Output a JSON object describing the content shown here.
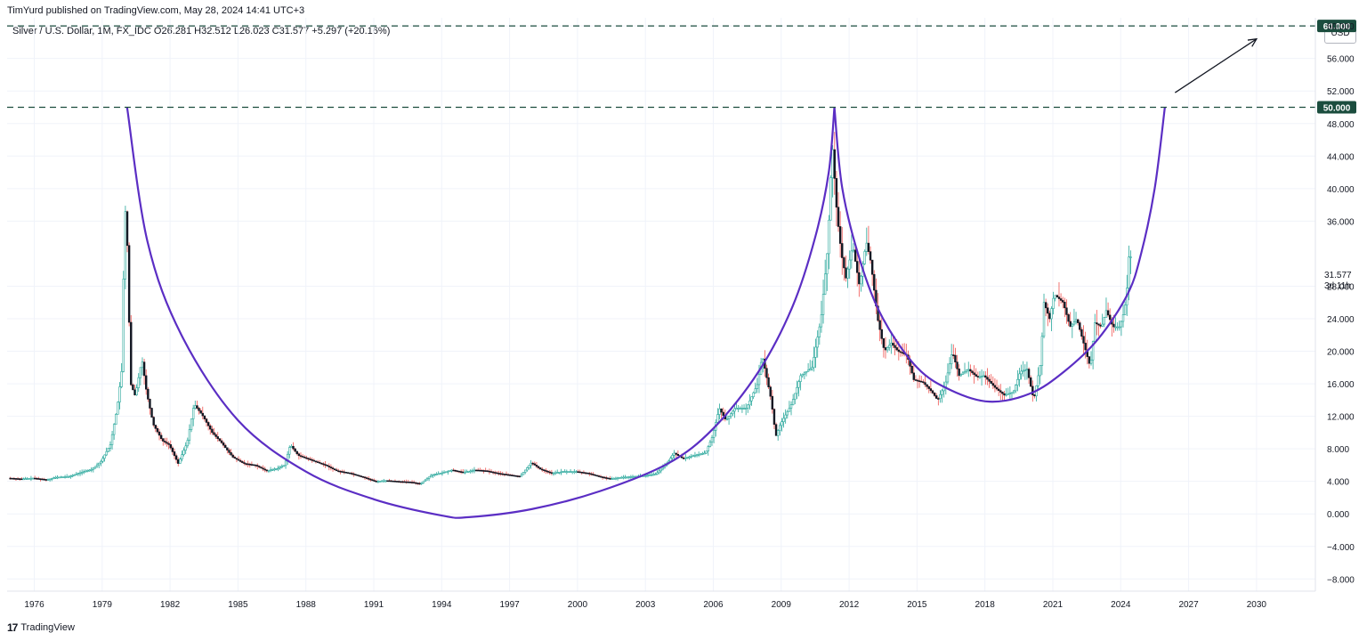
{
  "header": {
    "publisher": "TimYurd published on TradingView.com, May 28, 2024 14:41 UTC+3",
    "symbol_info": "Silver / U.S. Dollar, 1M, FX_IDC  O26.281  H32.512  L26.023  C31.577  +5.297 (+20.16%)",
    "currency": "USD"
  },
  "footer": {
    "brand": "TradingView",
    "logo_icon": "tradingview-logo-icon"
  },
  "colors": {
    "up": "#26a69a",
    "down": "#ef5350",
    "candle": "#131722",
    "cup_curve": "#5b2ec4",
    "level_line": "#1b4d3e",
    "level_badge": "#1b4d3e",
    "grid": "#f0f3fa",
    "axis_text": "#131722"
  },
  "chart_data": {
    "type": "line",
    "title": "",
    "x_label": "",
    "y_label": "",
    "x_ticks": [
      "1976",
      "1979",
      "1982",
      "1985",
      "1988",
      "1991",
      "1994",
      "1997",
      "2000",
      "2003",
      "2006",
      "2009",
      "2012",
      "2015",
      "2018",
      "2021",
      "2024",
      "2027",
      "2030"
    ],
    "y_ticks": [
      "60.000",
      "56.000",
      "52.000",
      "48.000",
      "44.000",
      "40.000",
      "36.000",
      "28.000",
      "24.000",
      "20.000",
      "16.000",
      "12.000",
      "8.000",
      "4.000",
      "0.000",
      "−4.000",
      "−8.000"
    ],
    "x_range": [
      1974.8,
      2032.6
    ],
    "y_range": [
      -9.5,
      61
    ],
    "price_label": "31.577",
    "countdown_label": "3d 11h",
    "levels": [
      {
        "value": 60,
        "label": "60.000"
      },
      {
        "value": 50,
        "label": "50.000"
      }
    ],
    "series": [
      {
        "name": "",
        "values_xy": [
          [
            1974.9,
            4.4
          ],
          [
            1975.5,
            4.3
          ],
          [
            1976.0,
            4.4
          ],
          [
            1976.6,
            4.2
          ],
          [
            1977.0,
            4.5
          ],
          [
            1977.6,
            4.6
          ],
          [
            1978.0,
            5.0
          ],
          [
            1978.6,
            5.5
          ],
          [
            1979.0,
            6.5
          ],
          [
            1979.4,
            8.5
          ],
          [
            1979.7,
            13.0
          ],
          [
            1979.9,
            17.5
          ],
          [
            1980.05,
            38.0
          ],
          [
            1980.15,
            33.0
          ],
          [
            1980.3,
            16.0
          ],
          [
            1980.5,
            14.5
          ],
          [
            1980.8,
            19.0
          ],
          [
            1981.0,
            15.0
          ],
          [
            1981.3,
            11.0
          ],
          [
            1981.7,
            9.0
          ],
          [
            1982.0,
            8.5
          ],
          [
            1982.4,
            6.2
          ],
          [
            1982.8,
            8.8
          ],
          [
            1983.1,
            13.5
          ],
          [
            1983.5,
            12.0
          ],
          [
            1983.9,
            10.0
          ],
          [
            1984.3,
            8.8
          ],
          [
            1984.8,
            7.0
          ],
          [
            1985.3,
            6.2
          ],
          [
            1985.8,
            6.0
          ],
          [
            1986.3,
            5.3
          ],
          [
            1986.8,
            5.6
          ],
          [
            1987.1,
            6.0
          ],
          [
            1987.35,
            8.5
          ],
          [
            1987.7,
            7.2
          ],
          [
            1988.3,
            6.6
          ],
          [
            1988.9,
            6.0
          ],
          [
            1989.4,
            5.3
          ],
          [
            1990.0,
            5.0
          ],
          [
            1990.6,
            4.5
          ],
          [
            1991.1,
            4.0
          ],
          [
            1991.6,
            4.1
          ],
          [
            1992.1,
            4.0
          ],
          [
            1992.7,
            3.9
          ],
          [
            1993.1,
            3.7
          ],
          [
            1993.6,
            4.8
          ],
          [
            1994.0,
            5.0
          ],
          [
            1994.5,
            5.4
          ],
          [
            1995.0,
            5.1
          ],
          [
            1995.5,
            5.4
          ],
          [
            1996.0,
            5.3
          ],
          [
            1996.5,
            5.0
          ],
          [
            1997.0,
            4.8
          ],
          [
            1997.5,
            4.6
          ],
          [
            1998.0,
            6.3
          ],
          [
            1998.4,
            5.5
          ],
          [
            1998.9,
            5.0
          ],
          [
            1999.4,
            5.2
          ],
          [
            2000.0,
            5.2
          ],
          [
            2000.5,
            5.0
          ],
          [
            2001.0,
            4.6
          ],
          [
            2001.5,
            4.3
          ],
          [
            2002.0,
            4.5
          ],
          [
            2002.5,
            4.6
          ],
          [
            2003.0,
            4.7
          ],
          [
            2003.5,
            4.9
          ],
          [
            2004.0,
            6.2
          ],
          [
            2004.3,
            7.5
          ],
          [
            2004.7,
            6.8
          ],
          [
            2005.2,
            7.2
          ],
          [
            2005.7,
            7.5
          ],
          [
            2006.0,
            9.5
          ],
          [
            2006.3,
            13.0
          ],
          [
            2006.6,
            11.5
          ],
          [
            2007.0,
            13.0
          ],
          [
            2007.5,
            13.0
          ],
          [
            2008.0,
            16.0
          ],
          [
            2008.2,
            19.5
          ],
          [
            2008.6,
            14.0
          ],
          [
            2008.8,
            9.5
          ],
          [
            2009.0,
            11.0
          ],
          [
            2009.5,
            13.5
          ],
          [
            2009.9,
            17.0
          ],
          [
            2010.4,
            18.0
          ],
          [
            2010.8,
            24.0
          ],
          [
            2011.1,
            33.0
          ],
          [
            2011.3,
            45.5
          ],
          [
            2011.5,
            37.0
          ],
          [
            2011.7,
            32.0
          ],
          [
            2011.9,
            29.0
          ],
          [
            2012.2,
            33.0
          ],
          [
            2012.5,
            28.0
          ],
          [
            2012.8,
            33.5
          ],
          [
            2013.0,
            31.0
          ],
          [
            2013.3,
            24.0
          ],
          [
            2013.6,
            20.0
          ],
          [
            2013.9,
            21.0
          ],
          [
            2014.2,
            20.0
          ],
          [
            2014.6,
            19.5
          ],
          [
            2014.9,
            16.5
          ],
          [
            2015.3,
            16.2
          ],
          [
            2015.7,
            15.0
          ],
          [
            2015.95,
            14.0
          ],
          [
            2016.3,
            16.0
          ],
          [
            2016.6,
            20.0
          ],
          [
            2016.9,
            17.0
          ],
          [
            2017.3,
            17.8
          ],
          [
            2017.7,
            16.8
          ],
          [
            2018.0,
            17.0
          ],
          [
            2018.5,
            15.5
          ],
          [
            2018.9,
            14.6
          ],
          [
            2019.3,
            15.0
          ],
          [
            2019.6,
            17.5
          ],
          [
            2019.9,
            17.8
          ],
          [
            2020.2,
            14.0
          ],
          [
            2020.5,
            18.5
          ],
          [
            2020.65,
            26.0
          ],
          [
            2020.9,
            24.0
          ],
          [
            2021.1,
            27.0
          ],
          [
            2021.5,
            26.0
          ],
          [
            2021.8,
            23.0
          ],
          [
            2022.1,
            24.0
          ],
          [
            2022.4,
            21.0
          ],
          [
            2022.7,
            18.0
          ],
          [
            2022.9,
            23.5
          ],
          [
            2023.2,
            23.0
          ],
          [
            2023.4,
            25.0
          ],
          [
            2023.7,
            23.0
          ],
          [
            2024.0,
            23.0
          ],
          [
            2024.2,
            25.0
          ],
          [
            2024.3,
            27.0
          ],
          [
            2024.4,
            31.6
          ]
        ]
      }
    ],
    "cup_curves": [
      {
        "points": [
          [
            1980.1,
            50
          ],
          [
            1981.0,
            33.5
          ],
          [
            1982.5,
            22.0
          ],
          [
            1985.0,
            11.5
          ],
          [
            1988.0,
            5.2
          ],
          [
            1991.0,
            1.8
          ],
          [
            1994.0,
            -0.2
          ],
          [
            1995.2,
            -0.4
          ],
          [
            1998.0,
            0.6
          ],
          [
            2001.0,
            2.8
          ],
          [
            2004.0,
            6.2
          ],
          [
            2006.0,
            10.5
          ],
          [
            2008.0,
            17.5
          ],
          [
            2009.5,
            25.5
          ],
          [
            2010.5,
            34.0
          ],
          [
            2011.1,
            42.0
          ],
          [
            2011.35,
            50
          ]
        ]
      },
      {
        "points": [
          [
            2011.35,
            50
          ],
          [
            2011.7,
            40.0
          ],
          [
            2012.5,
            31.0
          ],
          [
            2013.5,
            24.0
          ],
          [
            2015.0,
            18.0
          ],
          [
            2016.5,
            15.2
          ],
          [
            2018.2,
            13.8
          ],
          [
            2020.0,
            14.8
          ],
          [
            2021.5,
            17.5
          ],
          [
            2023.0,
            21.5
          ],
          [
            2024.3,
            27.0
          ],
          [
            2024.9,
            32.0
          ],
          [
            2025.5,
            40.0
          ],
          [
            2025.95,
            50
          ]
        ]
      }
    ],
    "annotations": [
      {
        "type": "arrow",
        "from": [
          2026.4,
          51.8
        ],
        "to": [
          2030.0,
          58.4
        ]
      }
    ]
  }
}
